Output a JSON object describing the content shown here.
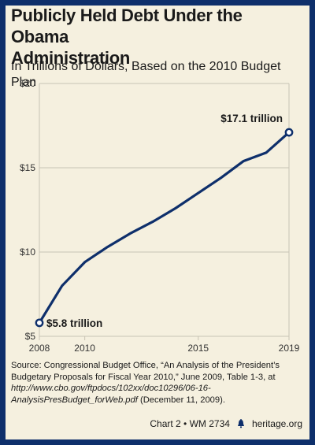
{
  "title_line1": "Publicly Held Debt Under the Obama",
  "title_line2": "Administration",
  "subtitle": "In Trillions of Dollars, Based on the 2010 Budget Plan",
  "source": {
    "label": "Source:",
    "text1": " Congressional Budget Office, “An Analysis of the President’s Budgetary Proposals for Fiscal Year 2010,” June 2009, Table 1-3, at ",
    "url": "http://www.cbo.gov/ftpdocs/102xx/doc10296/06-16-AnalysisPresBudget_forWeb.pdf",
    "text2": " (December 11, 2009)."
  },
  "footer": {
    "chart_id": "Chart 2 • WM 2734",
    "site": "heritage.org"
  },
  "colors": {
    "line": "#0e2f6b",
    "frame": "#0e2f6b",
    "background": "#f5f0df",
    "grid": "#c8c3b4"
  },
  "chart_data": {
    "type": "line",
    "x": [
      2008,
      2009,
      2010,
      2011,
      2012,
      2013,
      2014,
      2015,
      2016,
      2017,
      2018,
      2019
    ],
    "series": [
      {
        "values": [
          5.8,
          8.0,
          9.4,
          10.3,
          11.1,
          11.8,
          12.6,
          13.5,
          14.4,
          15.4,
          15.9,
          17.1
        ]
      }
    ],
    "ylim": [
      5,
      20
    ],
    "xlim": [
      2008,
      2019
    ],
    "y_ticks": [
      5,
      10,
      15,
      20
    ],
    "y_tick_labels": [
      "$5",
      "$10",
      "$15",
      "$20"
    ],
    "x_ticks": [
      2008,
      2010,
      2015,
      2019
    ],
    "x_tick_labels": [
      "2008",
      "2010",
      "2015",
      "2019"
    ],
    "grid": true,
    "annotations": [
      {
        "x": 2008,
        "y": 5.8,
        "text": "$5.8 trillion",
        "position": "right"
      },
      {
        "x": 2019,
        "y": 17.1,
        "text": "$17.1 trillion",
        "position": "above-left"
      }
    ]
  }
}
